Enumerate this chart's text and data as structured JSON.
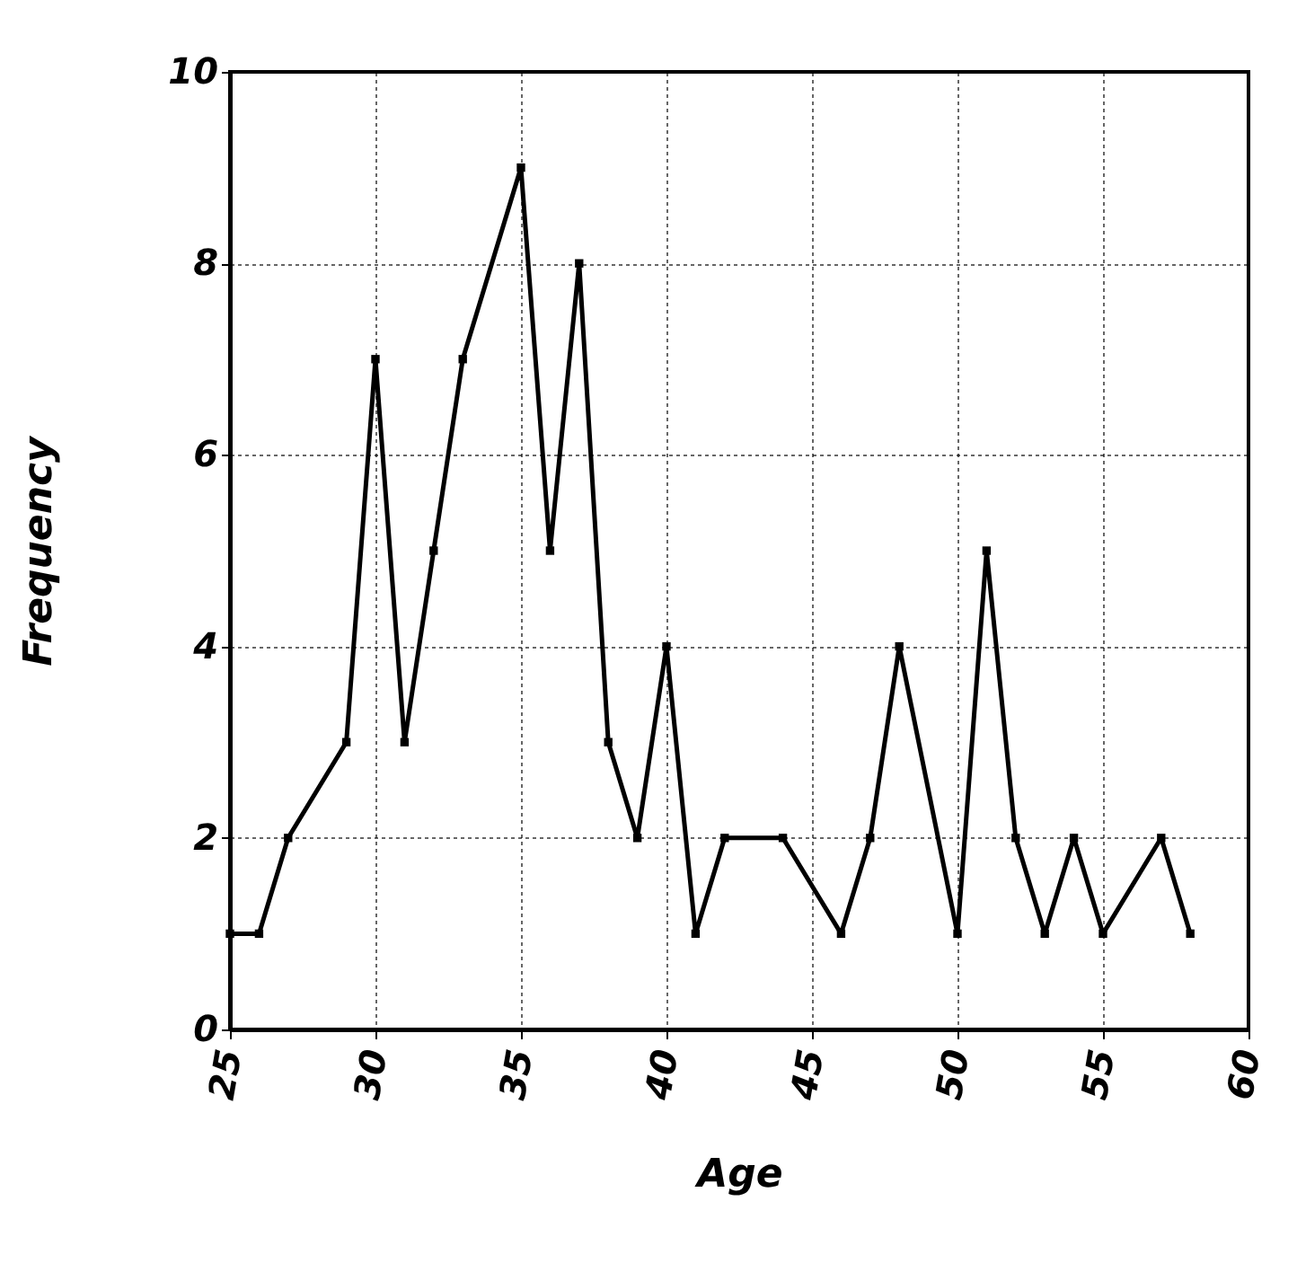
{
  "chart_data": {
    "type": "line",
    "xlabel": "Age",
    "ylabel": "Frequency",
    "x": [
      25,
      26,
      27,
      29,
      30,
      31,
      32,
      33,
      35,
      36,
      37,
      38,
      39,
      40,
      41,
      42,
      44,
      46,
      47,
      48,
      50,
      51,
      52,
      53,
      54,
      55,
      57,
      58
    ],
    "series": [
      {
        "color": "#000000",
        "values": [
          1,
          1,
          2,
          3,
          7,
          3,
          5,
          7,
          9,
          5,
          8,
          3,
          2,
          4,
          1,
          2,
          2,
          1,
          2,
          4,
          1,
          5,
          2,
          1,
          2,
          1,
          2,
          1
        ]
      }
    ],
    "xlim": [
      25,
      60
    ],
    "xticks": [
      25,
      30,
      35,
      40,
      45,
      50,
      55,
      60
    ],
    "ylim": [
      0,
      10
    ],
    "yticks": [
      0,
      2,
      4,
      6,
      8,
      10
    ],
    "grid": true,
    "marker": "square",
    "line_style": "solid"
  }
}
